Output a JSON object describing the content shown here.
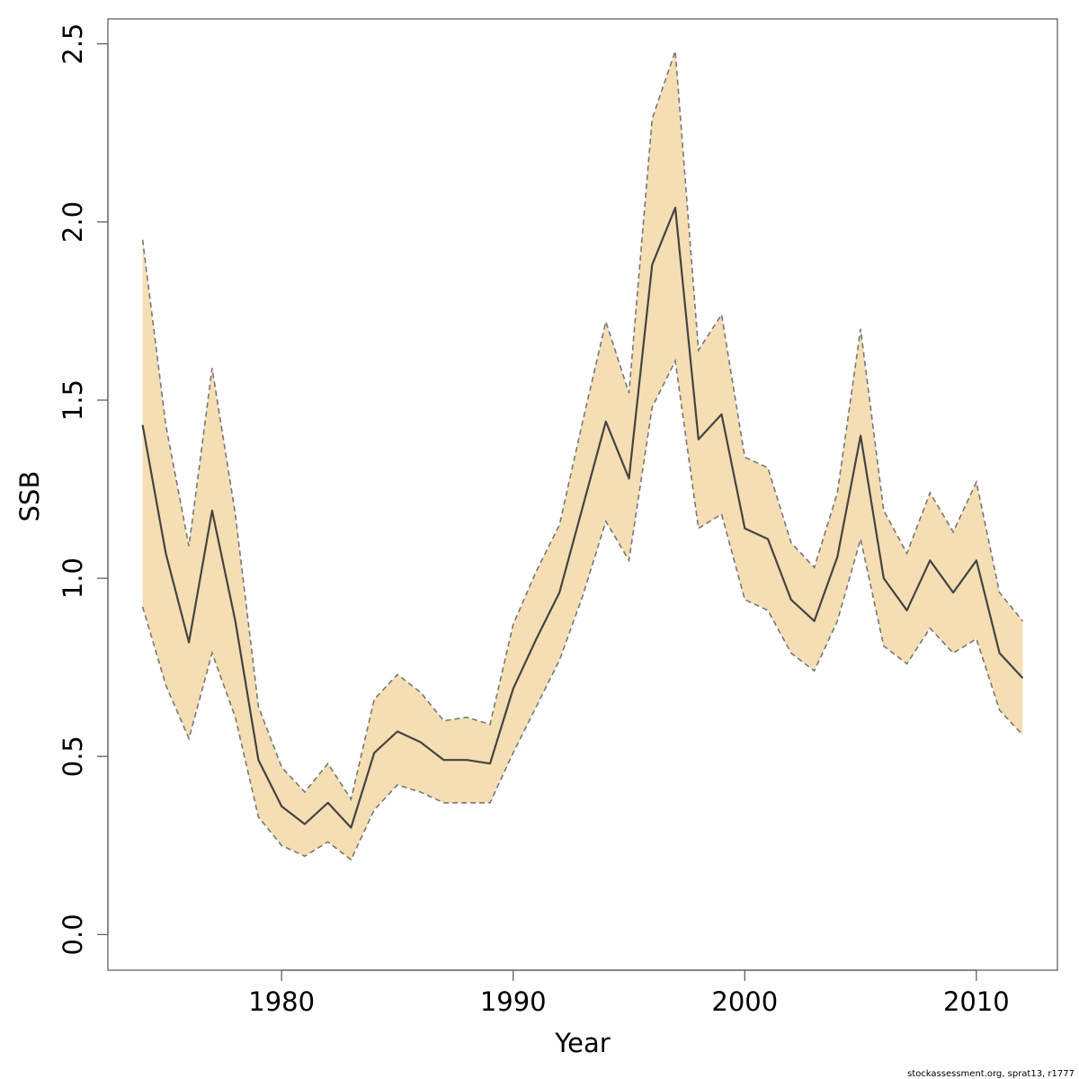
{
  "chart_data": {
    "type": "line",
    "title": "",
    "xlabel": "Year",
    "ylabel": "SSB",
    "xlim": [
      1972.5,
      2013.5
    ],
    "ylim": [
      -0.1,
      2.57
    ],
    "x_ticks": [
      1980,
      1990,
      2000,
      2010
    ],
    "x_tick_labels": [
      "1980",
      "1990",
      "2000",
      "2010"
    ],
    "y_ticks": [
      0.0,
      0.5,
      1.0,
      1.5,
      2.0,
      2.5
    ],
    "y_tick_labels": [
      "0.0",
      "0.5",
      "1.0",
      "1.5",
      "2.0",
      "2.5"
    ],
    "grid": false,
    "x": [
      1974,
      1975,
      1976,
      1977,
      1978,
      1979,
      1980,
      1981,
      1982,
      1983,
      1984,
      1985,
      1986,
      1987,
      1988,
      1989,
      1990,
      1991,
      1992,
      1993,
      1994,
      1995,
      1996,
      1997,
      1998,
      1999,
      2000,
      2001,
      2002,
      2003,
      2004,
      2005,
      2006,
      2007,
      2008,
      2009,
      2010,
      2011,
      2012
    ],
    "series": [
      {
        "values": [
          1.43,
          1.07,
          0.82,
          1.19,
          0.88,
          0.49,
          0.36,
          0.31,
          0.37,
          0.3,
          0.51,
          0.57,
          0.54,
          0.49,
          0.49,
          0.48,
          0.69,
          0.83,
          0.96,
          1.2,
          1.44,
          1.28,
          1.88,
          2.04,
          1.39,
          1.46,
          1.14,
          1.11,
          0.94,
          0.88,
          1.06,
          1.4,
          1.0,
          0.91,
          1.05,
          0.96,
          1.05,
          0.79,
          0.72
        ],
        "lower": [
          0.92,
          0.7,
          0.55,
          0.79,
          0.61,
          0.33,
          0.25,
          0.22,
          0.26,
          0.21,
          0.35,
          0.42,
          0.4,
          0.37,
          0.37,
          0.37,
          0.51,
          0.64,
          0.77,
          0.95,
          1.16,
          1.05,
          1.48,
          1.61,
          1.14,
          1.18,
          0.94,
          0.91,
          0.79,
          0.74,
          0.88,
          1.11,
          0.81,
          0.76,
          0.86,
          0.79,
          0.83,
          0.63,
          0.56
        ],
        "upper": [
          1.95,
          1.43,
          1.09,
          1.59,
          1.18,
          0.64,
          0.47,
          0.4,
          0.48,
          0.38,
          0.66,
          0.73,
          0.68,
          0.6,
          0.61,
          0.59,
          0.87,
          1.02,
          1.15,
          1.44,
          1.72,
          1.52,
          2.29,
          2.48,
          1.64,
          1.74,
          1.34,
          1.31,
          1.1,
          1.03,
          1.24,
          1.7,
          1.19,
          1.07,
          1.24,
          1.13,
          1.27,
          0.96,
          0.88
        ]
      }
    ],
    "colors": {
      "band": "#f5deb3",
      "band_edge": "#777777",
      "line": "#444444",
      "axis": "#555555"
    }
  },
  "footnote": "stockassessment.org, sprat13, r1777"
}
